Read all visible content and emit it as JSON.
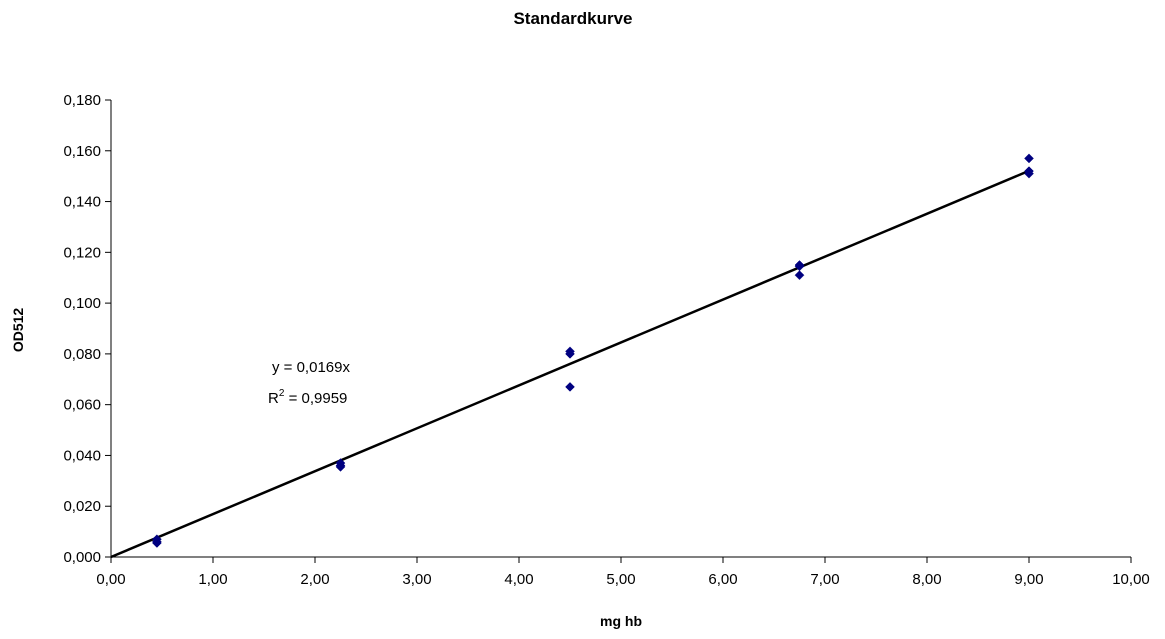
{
  "chart_data": {
    "type": "scatter",
    "title": "Standardkurve",
    "xlabel": "mg hb",
    "ylabel": "OD512",
    "xlim": [
      0,
      10
    ],
    "ylim": [
      0,
      0.18
    ],
    "x_ticks": [
      0,
      1,
      2,
      3,
      4,
      5,
      6,
      7,
      8,
      9,
      10
    ],
    "x_tick_labels": [
      "0,00",
      "1,00",
      "2,00",
      "3,00",
      "4,00",
      "5,00",
      "6,00",
      "7,00",
      "8,00",
      "9,00",
      "10,00"
    ],
    "y_ticks": [
      0,
      0.02,
      0.04,
      0.06,
      0.08,
      0.1,
      0.12,
      0.14,
      0.16,
      0.18
    ],
    "y_tick_labels": [
      "0,000",
      "0,020",
      "0,040",
      "0,060",
      "0,080",
      "0,100",
      "0,120",
      "0,140",
      "0,160",
      "0,180"
    ],
    "grid": false,
    "legend": "none",
    "series": [
      {
        "marker": "diamond",
        "color": "#000080",
        "points": [
          {
            "x": 0.45,
            "y": 0.006
          },
          {
            "x": 0.45,
            "y": 0.007
          },
          {
            "x": 0.45,
            "y": 0.0055
          },
          {
            "x": 2.25,
            "y": 0.036
          },
          {
            "x": 2.25,
            "y": 0.037
          },
          {
            "x": 2.25,
            "y": 0.0355
          },
          {
            "x": 4.5,
            "y": 0.081
          },
          {
            "x": 4.5,
            "y": 0.08
          },
          {
            "x": 4.5,
            "y": 0.067
          },
          {
            "x": 6.75,
            "y": 0.115
          },
          {
            "x": 6.75,
            "y": 0.111
          },
          {
            "x": 6.75,
            "y": 0.1145
          },
          {
            "x": 9.0,
            "y": 0.157
          },
          {
            "x": 9.0,
            "y": 0.152
          },
          {
            "x": 9.0,
            "y": 0.151
          }
        ]
      }
    ],
    "trendline": {
      "type": "linear",
      "slope": 0.0169,
      "intercept": 0,
      "x_range": [
        0,
        9.0
      ],
      "color": "#000000",
      "equation": "y = 0,0169x",
      "r2_prefix": "R",
      "r2_sup": "2",
      "r2_value": " = 0,9959"
    }
  }
}
